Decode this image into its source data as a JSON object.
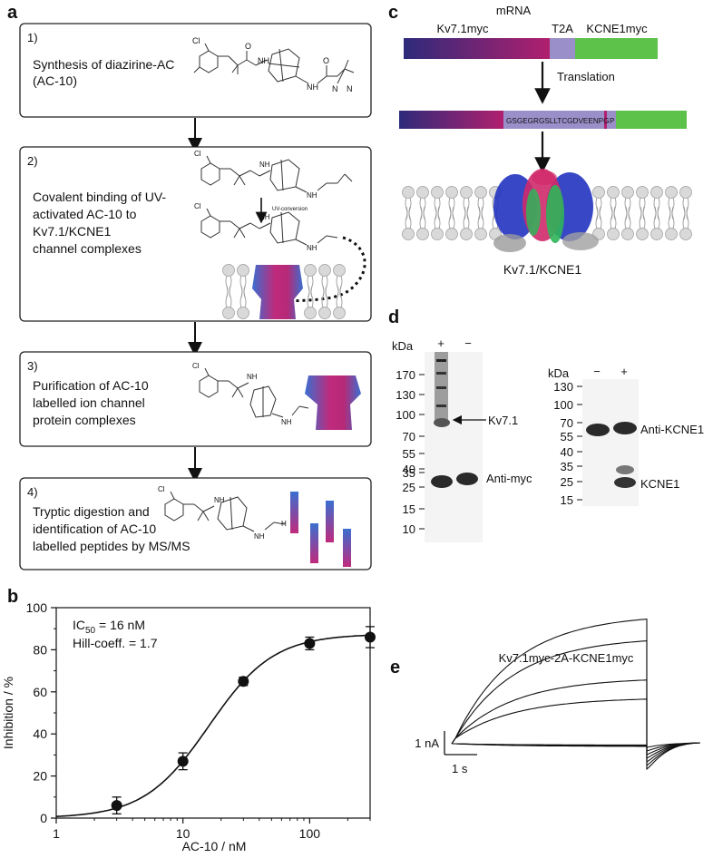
{
  "panel_a": {
    "letter": "a",
    "steps": [
      {
        "number": "1)",
        "lines": [
          "Synthesis of diazirine-AC",
          "(AC-10)"
        ]
      },
      {
        "number": "2)",
        "lines": [
          "Covalent binding of UV-",
          "activated AC-10 to",
          "Kv7.1/KCNE1",
          "channel complexes"
        ]
      },
      {
        "number": "3)",
        "lines": [
          "Purification of AC-10",
          "labelled ion channel",
          "protein complexes"
        ]
      },
      {
        "number": "4)",
        "lines": [
          "Tryptic digestion and",
          "identification of AC-10",
          "labelled peptides by MS/MS"
        ]
      }
    ],
    "chem_labels": {
      "cl": "Cl",
      "nh": "NH",
      "h": "H",
      "n": "N",
      "o": "O",
      "uv_conversion": "UV-conversion"
    }
  },
  "panel_b": {
    "letter": "b",
    "annotation_line1_prefix": "IC",
    "annotation_line1_sub": "50",
    "annotation_line1_suffix": " = 16 nM",
    "annotation_line2": "Hill-coeff. = 1.7"
  },
  "panel_c": {
    "letter": "c",
    "mrna_label": "mRNA",
    "seg_kv71": "Kv7.1myc",
    "seg_t2a": "T2A",
    "seg_kcne1": "KCNE1myc",
    "translation_label": "Translation",
    "peptide_seq": "GSGEGRGSLLTCGDVEENPG",
    "peptide_p": "P",
    "complex_label": "Kv7.1/KCNE1",
    "colors": {
      "kv_start": "#2e2a7a",
      "kv_end": "#b0206e",
      "t2a": "#9a8fc8",
      "kcne1": "#5cc24a"
    }
  },
  "panel_d": {
    "letter": "d",
    "blot1": {
      "unit": "kDa",
      "lanes": [
        "+",
        "−"
      ],
      "markers": [
        "170",
        "130",
        "100",
        "70",
        "55",
        "40",
        "35",
        "25",
        "15",
        "10"
      ],
      "labels": {
        "kv71": "Kv7.1",
        "antimyc": "Anti-myc"
      }
    },
    "blot2": {
      "unit": "kDa",
      "lanes": [
        "−",
        "+"
      ],
      "markers": [
        "130",
        "100",
        "70",
        "55",
        "40",
        "35",
        "25",
        "15"
      ],
      "labels": {
        "antikcne1": "Anti-KCNE1",
        "kcne1": "KCNE1"
      }
    }
  },
  "panel_e": {
    "letter": "e",
    "title": "Kv7.1myc-2A-KCNE1myc",
    "scale_current": "1 nA",
    "scale_time": "1 s"
  },
  "chart_data": {
    "type": "scatter",
    "title": "",
    "xlabel": "AC-10 / nM",
    "ylabel": "Inhibition / %",
    "x_scale": "log",
    "xlim": [
      1,
      300
    ],
    "ylim": [
      0,
      100
    ],
    "x_ticks": [
      1,
      10,
      100
    ],
    "x_tick_labels": [
      "1",
      "10",
      "100"
    ],
    "y_ticks": [
      0,
      20,
      40,
      60,
      80,
      100
    ],
    "y_tick_labels": [
      "0",
      "20",
      "40",
      "60",
      "80",
      "100"
    ],
    "series": [
      {
        "x": [
          3,
          10,
          30,
          100,
          300
        ],
        "y": [
          6,
          27,
          65,
          83,
          86
        ],
        "error": [
          4,
          4,
          2,
          3,
          5
        ]
      }
    ],
    "fit": {
      "ic50": 16,
      "hill": 1.7,
      "top": 87.5,
      "bottom": 0
    },
    "grid": false
  }
}
